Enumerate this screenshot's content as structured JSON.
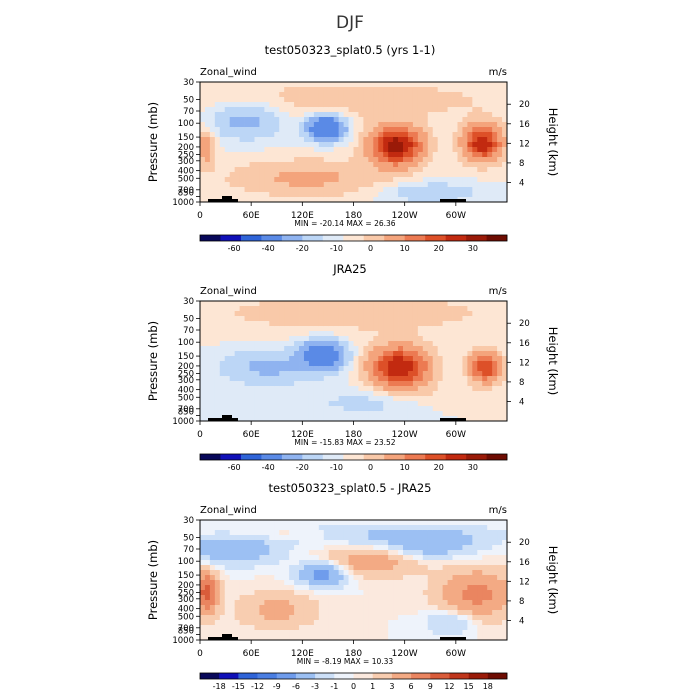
{
  "figure": {
    "title": "DJF"
  },
  "chart_data": [
    {
      "type": "heatmap",
      "title": "test050323_splat0.5 (yrs 1-1)",
      "variable": "Zonal_wind",
      "units": "m/s",
      "ylabel": "Pressure (mb)",
      "ylabel_right": "Height (km)",
      "pressure_ticks": [
        "30",
        "50",
        "70",
        "100",
        "150",
        "200",
        "250",
        "300",
        "400",
        "500",
        "700",
        "850",
        "1000"
      ],
      "height_ticks": [
        "20",
        "16",
        "12",
        "8",
        "4"
      ],
      "x_ticks": [
        "0",
        "60E",
        "120E",
        "180",
        "120W",
        "60W"
      ],
      "stats": "MIN = -20.14   MAX =  26.36",
      "colorbar_labels": [
        "-60",
        "-40",
        "-20",
        "-10",
        "0",
        "10",
        "20",
        "30"
      ],
      "colors": [
        "#08085a",
        "#1010b8",
        "#2f64d8",
        "#5a8ae6",
        "#8fb3f0",
        "#bcd6f6",
        "#dfeaf7",
        "#fde6d4",
        "#f9c9a9",
        "#f4a47c",
        "#ec7a52",
        "#dd5028",
        "#c22a10",
        "#9a1a08",
        "#6e0c02"
      ],
      "min": -20.14,
      "max": 26.36,
      "grid": false
    },
    {
      "type": "heatmap",
      "title": "JRA25",
      "variable": "Zonal_wind",
      "units": "m/s",
      "ylabel": "Pressure (mb)",
      "ylabel_right": "Height (km)",
      "pressure_ticks": [
        "30",
        "50",
        "70",
        "100",
        "150",
        "200",
        "250",
        "300",
        "400",
        "500",
        "700",
        "850",
        "1000"
      ],
      "height_ticks": [
        "20",
        "16",
        "12",
        "8",
        "4"
      ],
      "x_ticks": [
        "0",
        "60E",
        "120E",
        "180",
        "120W",
        "60W"
      ],
      "stats": "MIN = -15.83   MAX =  23.52",
      "colorbar_labels": [
        "-60",
        "-40",
        "-20",
        "-10",
        "0",
        "10",
        "20",
        "30"
      ],
      "colors": [
        "#08085a",
        "#1010b8",
        "#2f64d8",
        "#5a8ae6",
        "#8fb3f0",
        "#bcd6f6",
        "#dfeaf7",
        "#fde6d4",
        "#f9c9a9",
        "#f4a47c",
        "#ec7a52",
        "#dd5028",
        "#c22a10",
        "#9a1a08",
        "#6e0c02"
      ],
      "min": -15.83,
      "max": 23.52,
      "grid": false
    },
    {
      "type": "heatmap",
      "title": "test050323_splat0.5 - JRA25",
      "variable": "Zonal_wind",
      "units": "m/s",
      "ylabel": "Pressure (mb)",
      "ylabel_right": "Height (km)",
      "pressure_ticks": [
        "30",
        "50",
        "70",
        "100",
        "150",
        "200",
        "250",
        "300",
        "400",
        "500",
        "700",
        "850",
        "1000"
      ],
      "height_ticks": [
        "20",
        "16",
        "12",
        "8",
        "4"
      ],
      "x_ticks": [
        "0",
        "60E",
        "120E",
        "180",
        "120W",
        "60W"
      ],
      "stats": "MIN =  -8.19   MAX =  10.33",
      "colorbar_labels": [
        "-18",
        "-15",
        "-12",
        "-9",
        "-6",
        "-3",
        "-1",
        "0",
        "1",
        "3",
        "6",
        "9",
        "12",
        "15",
        "18"
      ],
      "colors": [
        "#08085a",
        "#1010b8",
        "#2f64d8",
        "#4a7ee2",
        "#6f9cec",
        "#9cc0f3",
        "#cde0f8",
        "#eef3fb",
        "#fbe9de",
        "#f8cdb0",
        "#f3aa84",
        "#ea8560",
        "#d95c3a",
        "#c0361c",
        "#9a1a08",
        "#6e0c02"
      ],
      "min": -8.19,
      "max": 10.33,
      "grid": false
    }
  ]
}
